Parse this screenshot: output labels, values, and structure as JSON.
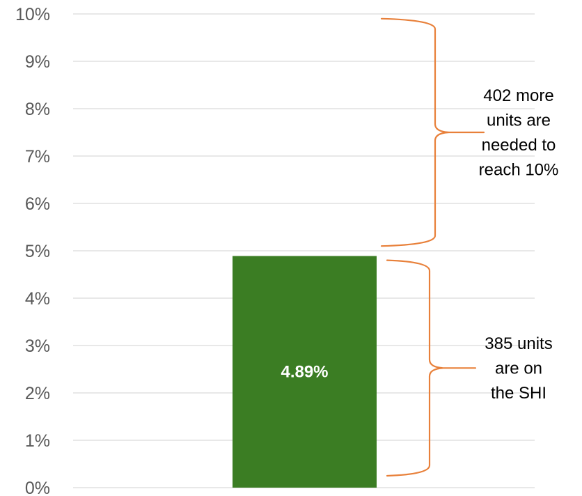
{
  "chart_data": {
    "type": "bar",
    "categories": [
      ""
    ],
    "values": [
      4.89
    ],
    "ylim": [
      0,
      10
    ],
    "y_ticks": [
      "0%",
      "1%",
      "2%",
      "3%",
      "4%",
      "5%",
      "6%",
      "7%",
      "8%",
      "9%",
      "10%"
    ],
    "grid": true,
    "bar_color": "#3b7d23",
    "data_labels": [
      "4.89%"
    ],
    "annotations": [
      {
        "range": [
          5.1,
          9.9
        ],
        "lines": [
          "402 more",
          "units are",
          "needed to",
          "reach 10%"
        ]
      },
      {
        "range": [
          0.25,
          4.8
        ],
        "lines": [
          "385 units",
          "are on",
          "the SHI"
        ]
      }
    ],
    "bracket_color": "#e8803a"
  }
}
